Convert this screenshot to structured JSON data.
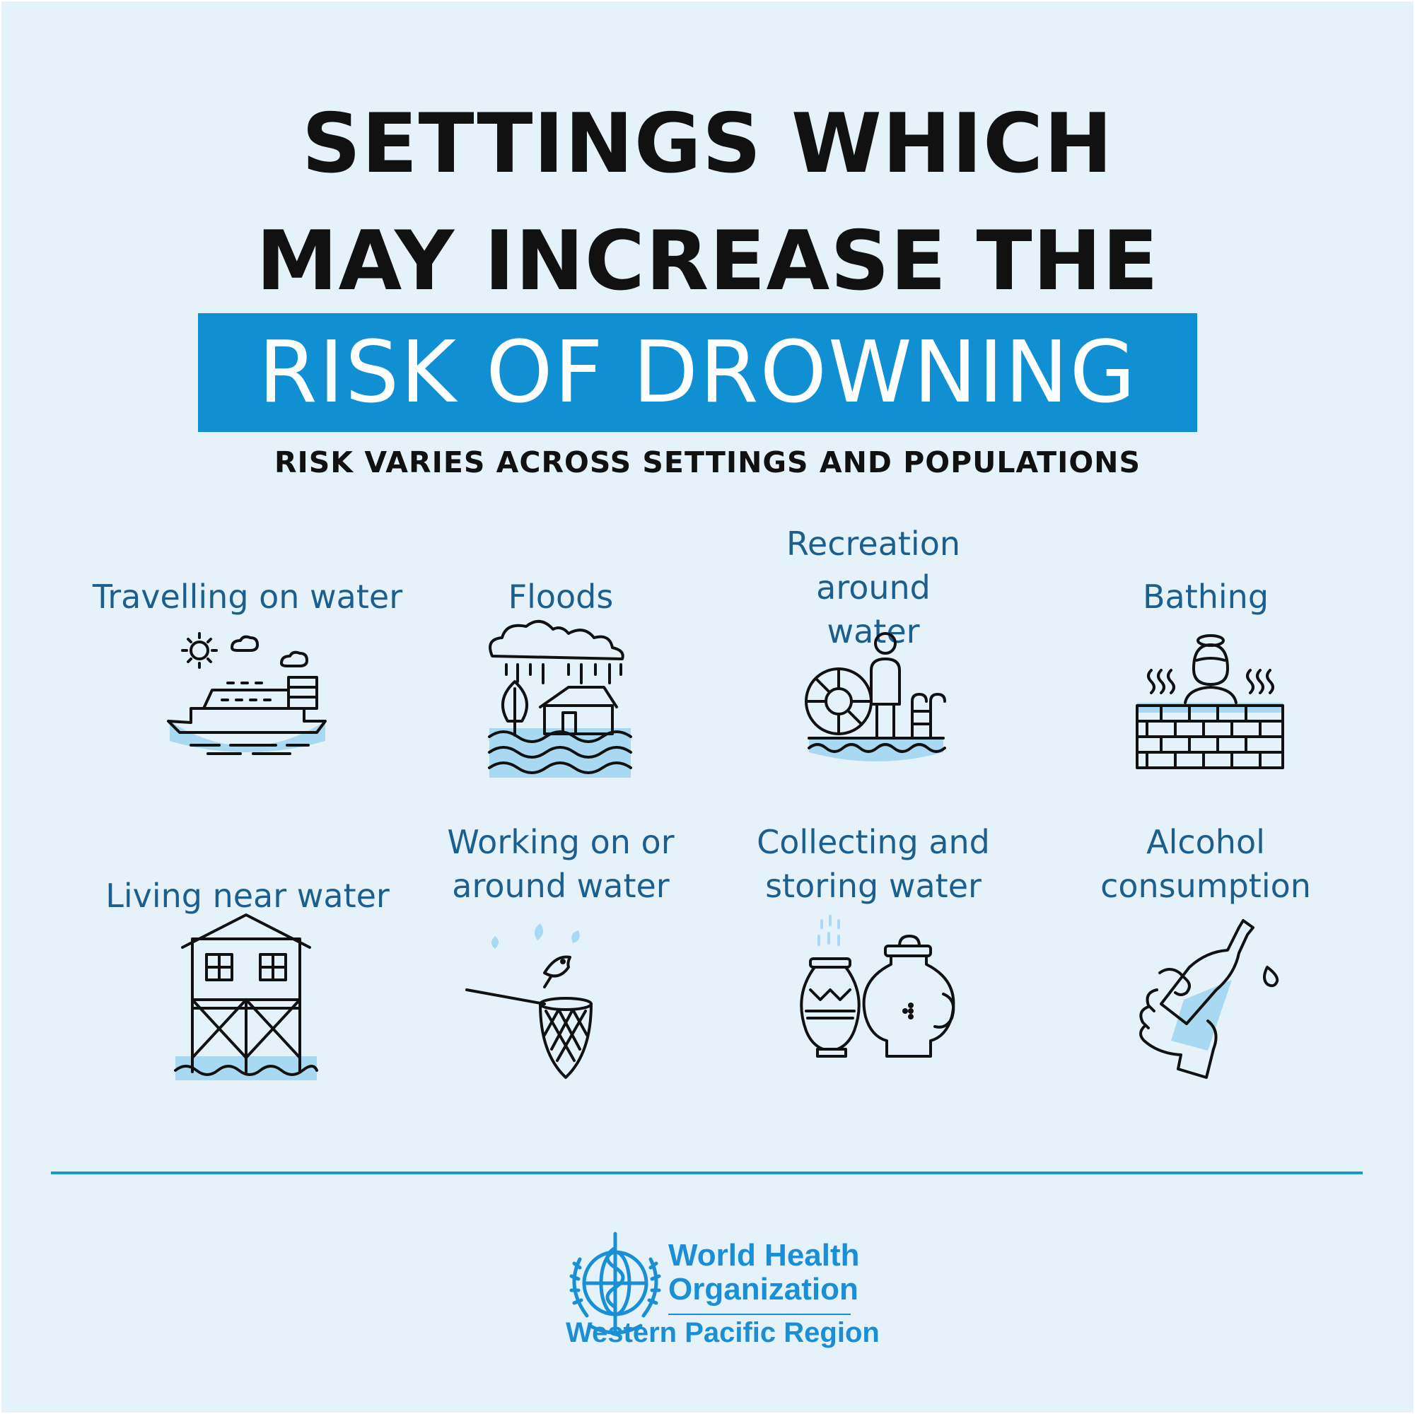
{
  "title": {
    "line1": "SETTINGS WHICH",
    "line2": "MAY INCREASE THE",
    "highlight": "RISK OF DROWNING"
  },
  "subtitle": "RISK VARIES ACROSS SETTINGS AND POPULATIONS",
  "colors": {
    "background": "#e6f2f9",
    "accent": "#1090d2",
    "label": "#1c5f8f",
    "water": "#a9d8f2",
    "icon_stroke": "#111111"
  },
  "settings": [
    {
      "label": "Travelling on water",
      "icon": "boat-icon"
    },
    {
      "label": "Floods",
      "icon": "flood-icon"
    },
    {
      "label": "Recreation around water",
      "icon": "recreation-icon"
    },
    {
      "label": "Bathing",
      "icon": "bathing-icon"
    },
    {
      "label": "Living near water",
      "icon": "stilt-house-icon"
    },
    {
      "label": "Working on or around water",
      "icon": "fishing-net-icon"
    },
    {
      "label": "Collecting and storing water",
      "icon": "water-jars-icon"
    },
    {
      "label": "Alcohol consumption",
      "icon": "alcohol-bottle-icon"
    }
  ],
  "organization": {
    "name_line1": "World Health",
    "name_line2": "Organization",
    "region": "Western Pacific Region"
  }
}
